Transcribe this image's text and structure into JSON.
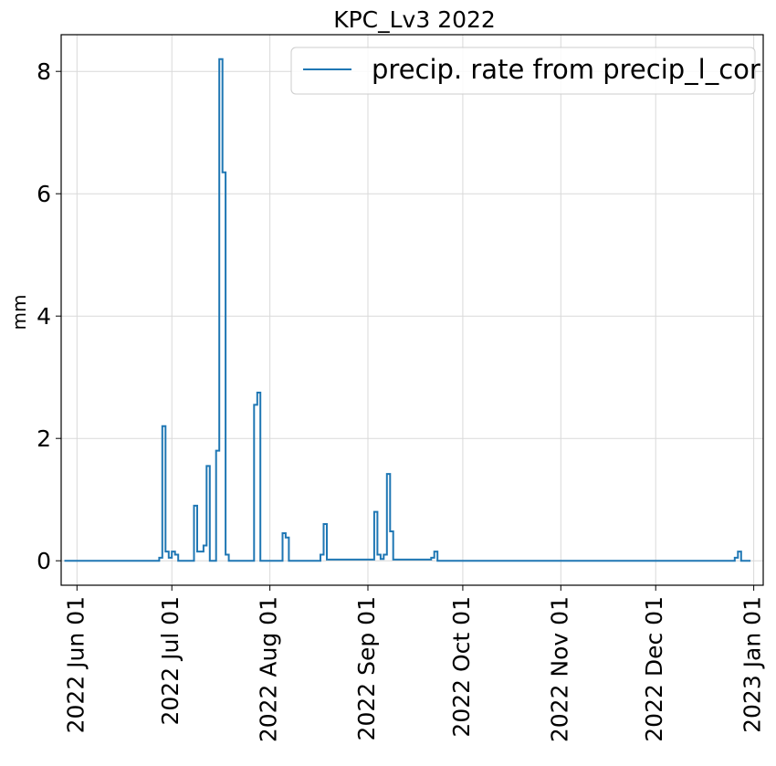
{
  "chart_data": {
    "type": "line",
    "title": "KPC_Lv3 2022",
    "xlabel": "",
    "ylabel": "mm",
    "grid": true,
    "legend_position": "top-right",
    "xlim": [
      "2022-05-27",
      "2023-01-04"
    ],
    "ylim": [
      -0.4,
      8.6
    ],
    "yticks": [
      0,
      2,
      4,
      6,
      8
    ],
    "xticks": [
      "2022-06-01",
      "2022-07-01",
      "2022-08-01",
      "2022-09-01",
      "2022-10-01",
      "2022-11-01",
      "2022-12-01",
      "2023-01-01"
    ],
    "xtick_labels": [
      "2022 Jun 01",
      "2022 Jul 01",
      "2022 Aug 01",
      "2022 Sep 01",
      "2022 Oct 01",
      "2022 Nov 01",
      "2022 Dec 01",
      "2023 Jan 01"
    ],
    "series": [
      {
        "name": "precip. rate from precip_l_cor",
        "color": "#1f77b4",
        "step": "post",
        "x": [
          "2022-05-28",
          "2022-06-27",
          "2022-06-28",
          "2022-06-29",
          "2022-06-30",
          "2022-07-01",
          "2022-07-02",
          "2022-07-03",
          "2022-07-08",
          "2022-07-09",
          "2022-07-11",
          "2022-07-12",
          "2022-07-13",
          "2022-07-15",
          "2022-07-16",
          "2022-07-17",
          "2022-07-18",
          "2022-07-19",
          "2022-07-20",
          "2022-07-21",
          "2022-07-27",
          "2022-07-28",
          "2022-07-29",
          "2022-08-05",
          "2022-08-06",
          "2022-08-07",
          "2022-08-17",
          "2022-08-18",
          "2022-08-19",
          "2022-09-03",
          "2022-09-04",
          "2022-09-05",
          "2022-09-06",
          "2022-09-07",
          "2022-09-08",
          "2022-09-09",
          "2022-09-21",
          "2022-09-22",
          "2022-09-23",
          "2022-12-26",
          "2022-12-27",
          "2022-12-28",
          "2022-12-31"
        ],
        "values": [
          0,
          0.05,
          2.2,
          0.15,
          0.05,
          0.15,
          0.1,
          0,
          0.9,
          0.15,
          0.25,
          1.55,
          0,
          1.8,
          8.2,
          6.35,
          0.1,
          0,
          0,
          0,
          2.55,
          2.75,
          0,
          0.45,
          0.38,
          0,
          0.1,
          0.6,
          0.02,
          0.8,
          0.1,
          0.03,
          0.1,
          1.42,
          0.48,
          0.02,
          0.05,
          0.15,
          0,
          0.05,
          0.15,
          0,
          0
        ]
      }
    ]
  }
}
